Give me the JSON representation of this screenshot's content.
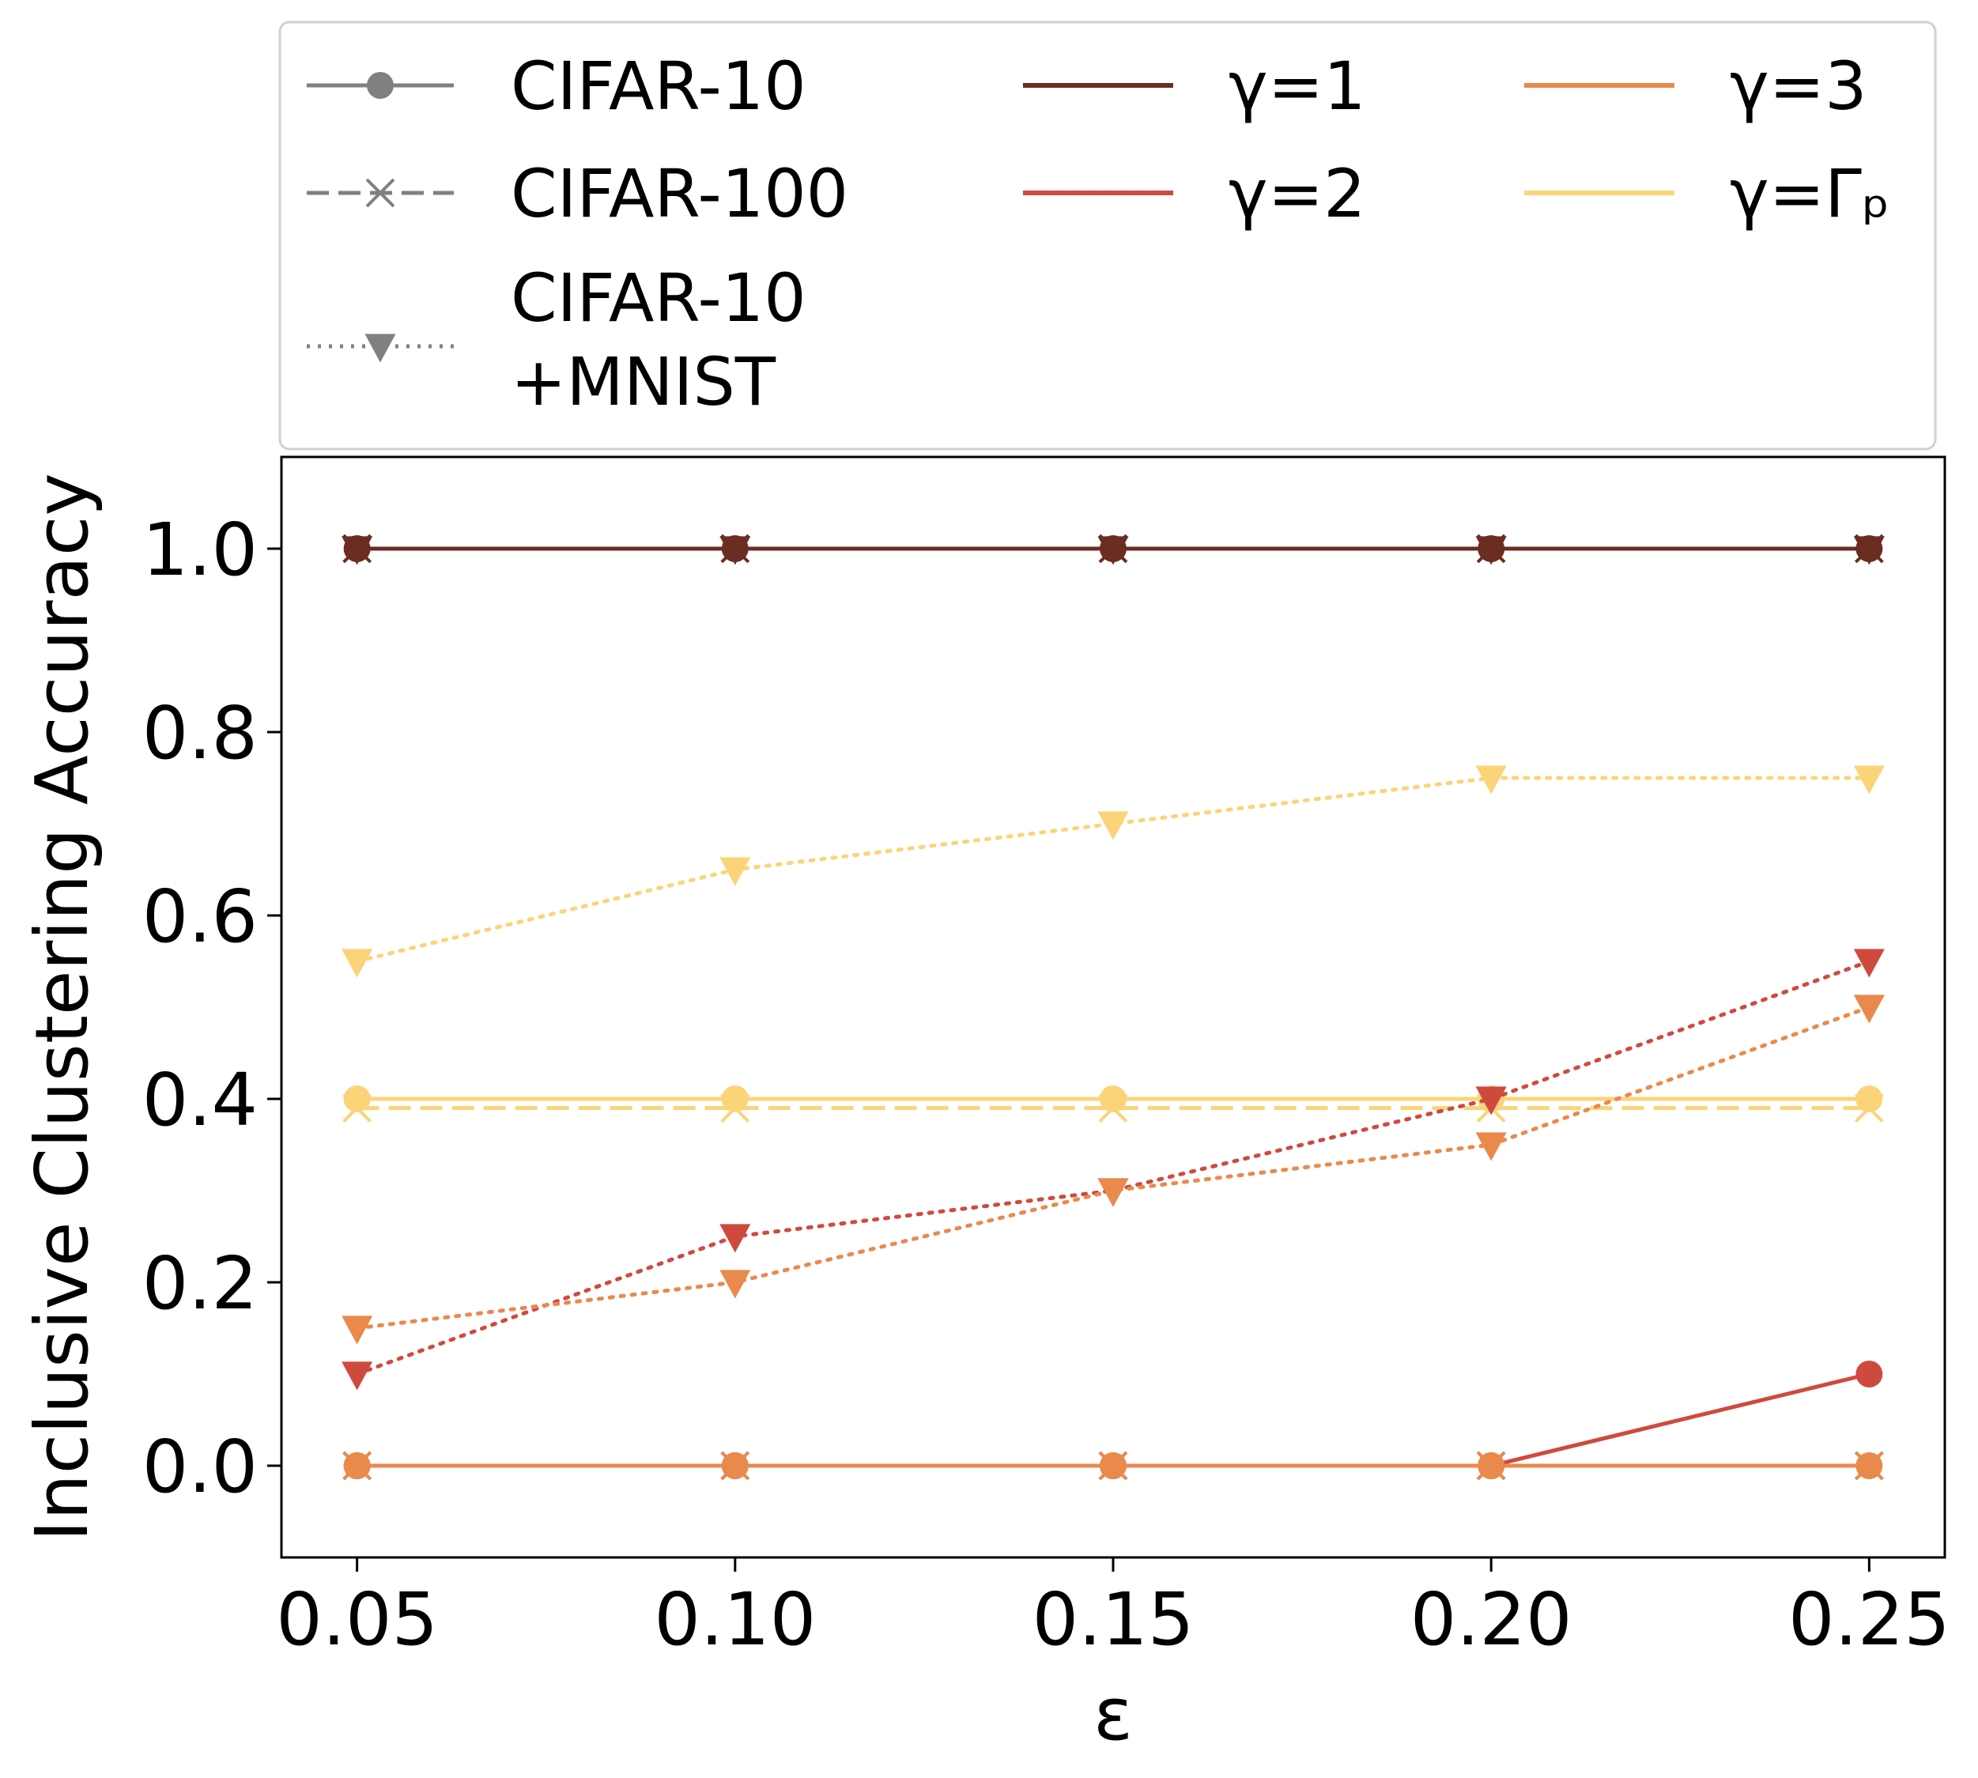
{
  "chart_data": {
    "type": "line",
    "title": "",
    "xlabel": "ε",
    "ylabel": "Inclusive Clustering Accuracy",
    "x": [
      0.05,
      0.1,
      0.15,
      0.2,
      0.25
    ],
    "xlim": [
      0.04,
      0.26
    ],
    "ylim": [
      -0.1,
      1.1
    ],
    "xticks": [
      0.05,
      0.1,
      0.15,
      0.2,
      0.25
    ],
    "xtick_labels": [
      "0.05",
      "0.10",
      "0.15",
      "0.20",
      "0.25"
    ],
    "yticks": [
      0.0,
      0.2,
      0.4,
      0.6,
      0.8,
      1.0
    ],
    "ytick_labels": [
      "0.0",
      "0.2",
      "0.4",
      "0.6",
      "0.8",
      "1.0"
    ],
    "grid": false,
    "legend_placement": "above plot",
    "gammas": [
      {
        "key": "g1",
        "label": "γ=1",
        "color": "#6b2c21"
      },
      {
        "key": "g2",
        "label": "γ=2",
        "color": "#cf4a3e"
      },
      {
        "key": "g3",
        "label": "γ=3",
        "color": "#e98a4c"
      },
      {
        "key": "gp",
        "label": "γ=Γₚ",
        "color": "#fbd47a"
      }
    ],
    "datasets": [
      {
        "key": "cifar10",
        "label": "CIFAR-10",
        "linestyle": "solid",
        "marker": "circle"
      },
      {
        "key": "cifar100",
        "label": "CIFAR-100",
        "linestyle": "dashed",
        "marker": "x"
      },
      {
        "key": "cifarmnist",
        "label": "CIFAR-10\n+MNIST",
        "label_lines": [
          "CIFAR-10",
          "+MNIST"
        ],
        "linestyle": "dotted",
        "marker": "triangle-down"
      }
    ],
    "legend_marker_color": "#808080",
    "series": [
      {
        "name": "CIFAR-10, γ=1",
        "dataset": "cifar10",
        "gamma": "g1",
        "values": [
          1.0,
          1.0,
          1.0,
          1.0,
          1.0
        ]
      },
      {
        "name": "CIFAR-100, γ=1",
        "dataset": "cifar100",
        "gamma": "g1",
        "values": [
          1.0,
          1.0,
          1.0,
          1.0,
          1.0
        ]
      },
      {
        "name": "CIFAR-10+MNIST, γ=1",
        "dataset": "cifarmnist",
        "gamma": "g1",
        "values": [
          1.0,
          1.0,
          1.0,
          1.0,
          1.0
        ]
      },
      {
        "name": "CIFAR-100, γ=Γp",
        "dataset": "cifar100",
        "gamma": "gp",
        "values": [
          0.39,
          0.39,
          0.39,
          0.39,
          0.39
        ]
      },
      {
        "name": "CIFAR-10, γ=Γp",
        "dataset": "cifar10",
        "gamma": "gp",
        "values": [
          0.4,
          0.4,
          0.4,
          0.4,
          0.4
        ]
      },
      {
        "name": "CIFAR-10+MNIST, γ=Γp",
        "dataset": "cifarmnist",
        "gamma": "gp",
        "values": [
          0.55,
          0.65,
          0.7,
          0.75,
          0.75
        ]
      },
      {
        "name": "CIFAR-10+MNIST, γ=2",
        "dataset": "cifarmnist",
        "gamma": "g2",
        "values": [
          0.1,
          0.25,
          0.3,
          0.4,
          0.55
        ]
      },
      {
        "name": "CIFAR-10+MNIST, γ=3",
        "dataset": "cifarmnist",
        "gamma": "g3",
        "values": [
          0.15,
          0.2,
          0.3,
          0.35,
          0.5
        ]
      },
      {
        "name": "CIFAR-10, γ=2",
        "dataset": "cifar10",
        "gamma": "g2",
        "values": [
          0.0,
          0.0,
          0.0,
          0.0,
          0.1
        ]
      },
      {
        "name": "CIFAR-100, γ=2",
        "dataset": "cifar100",
        "gamma": "g2",
        "values": [
          0.0,
          0.0,
          0.0,
          0.0,
          0.0
        ]
      },
      {
        "name": "CIFAR-100, γ=3",
        "dataset": "cifar100",
        "gamma": "g3",
        "values": [
          0.0,
          0.0,
          0.0,
          0.0,
          0.0
        ]
      },
      {
        "name": "CIFAR-10, γ=3",
        "dataset": "cifar10",
        "gamma": "g3",
        "values": [
          0.0,
          0.0,
          0.0,
          0.0,
          0.0
        ]
      }
    ]
  }
}
